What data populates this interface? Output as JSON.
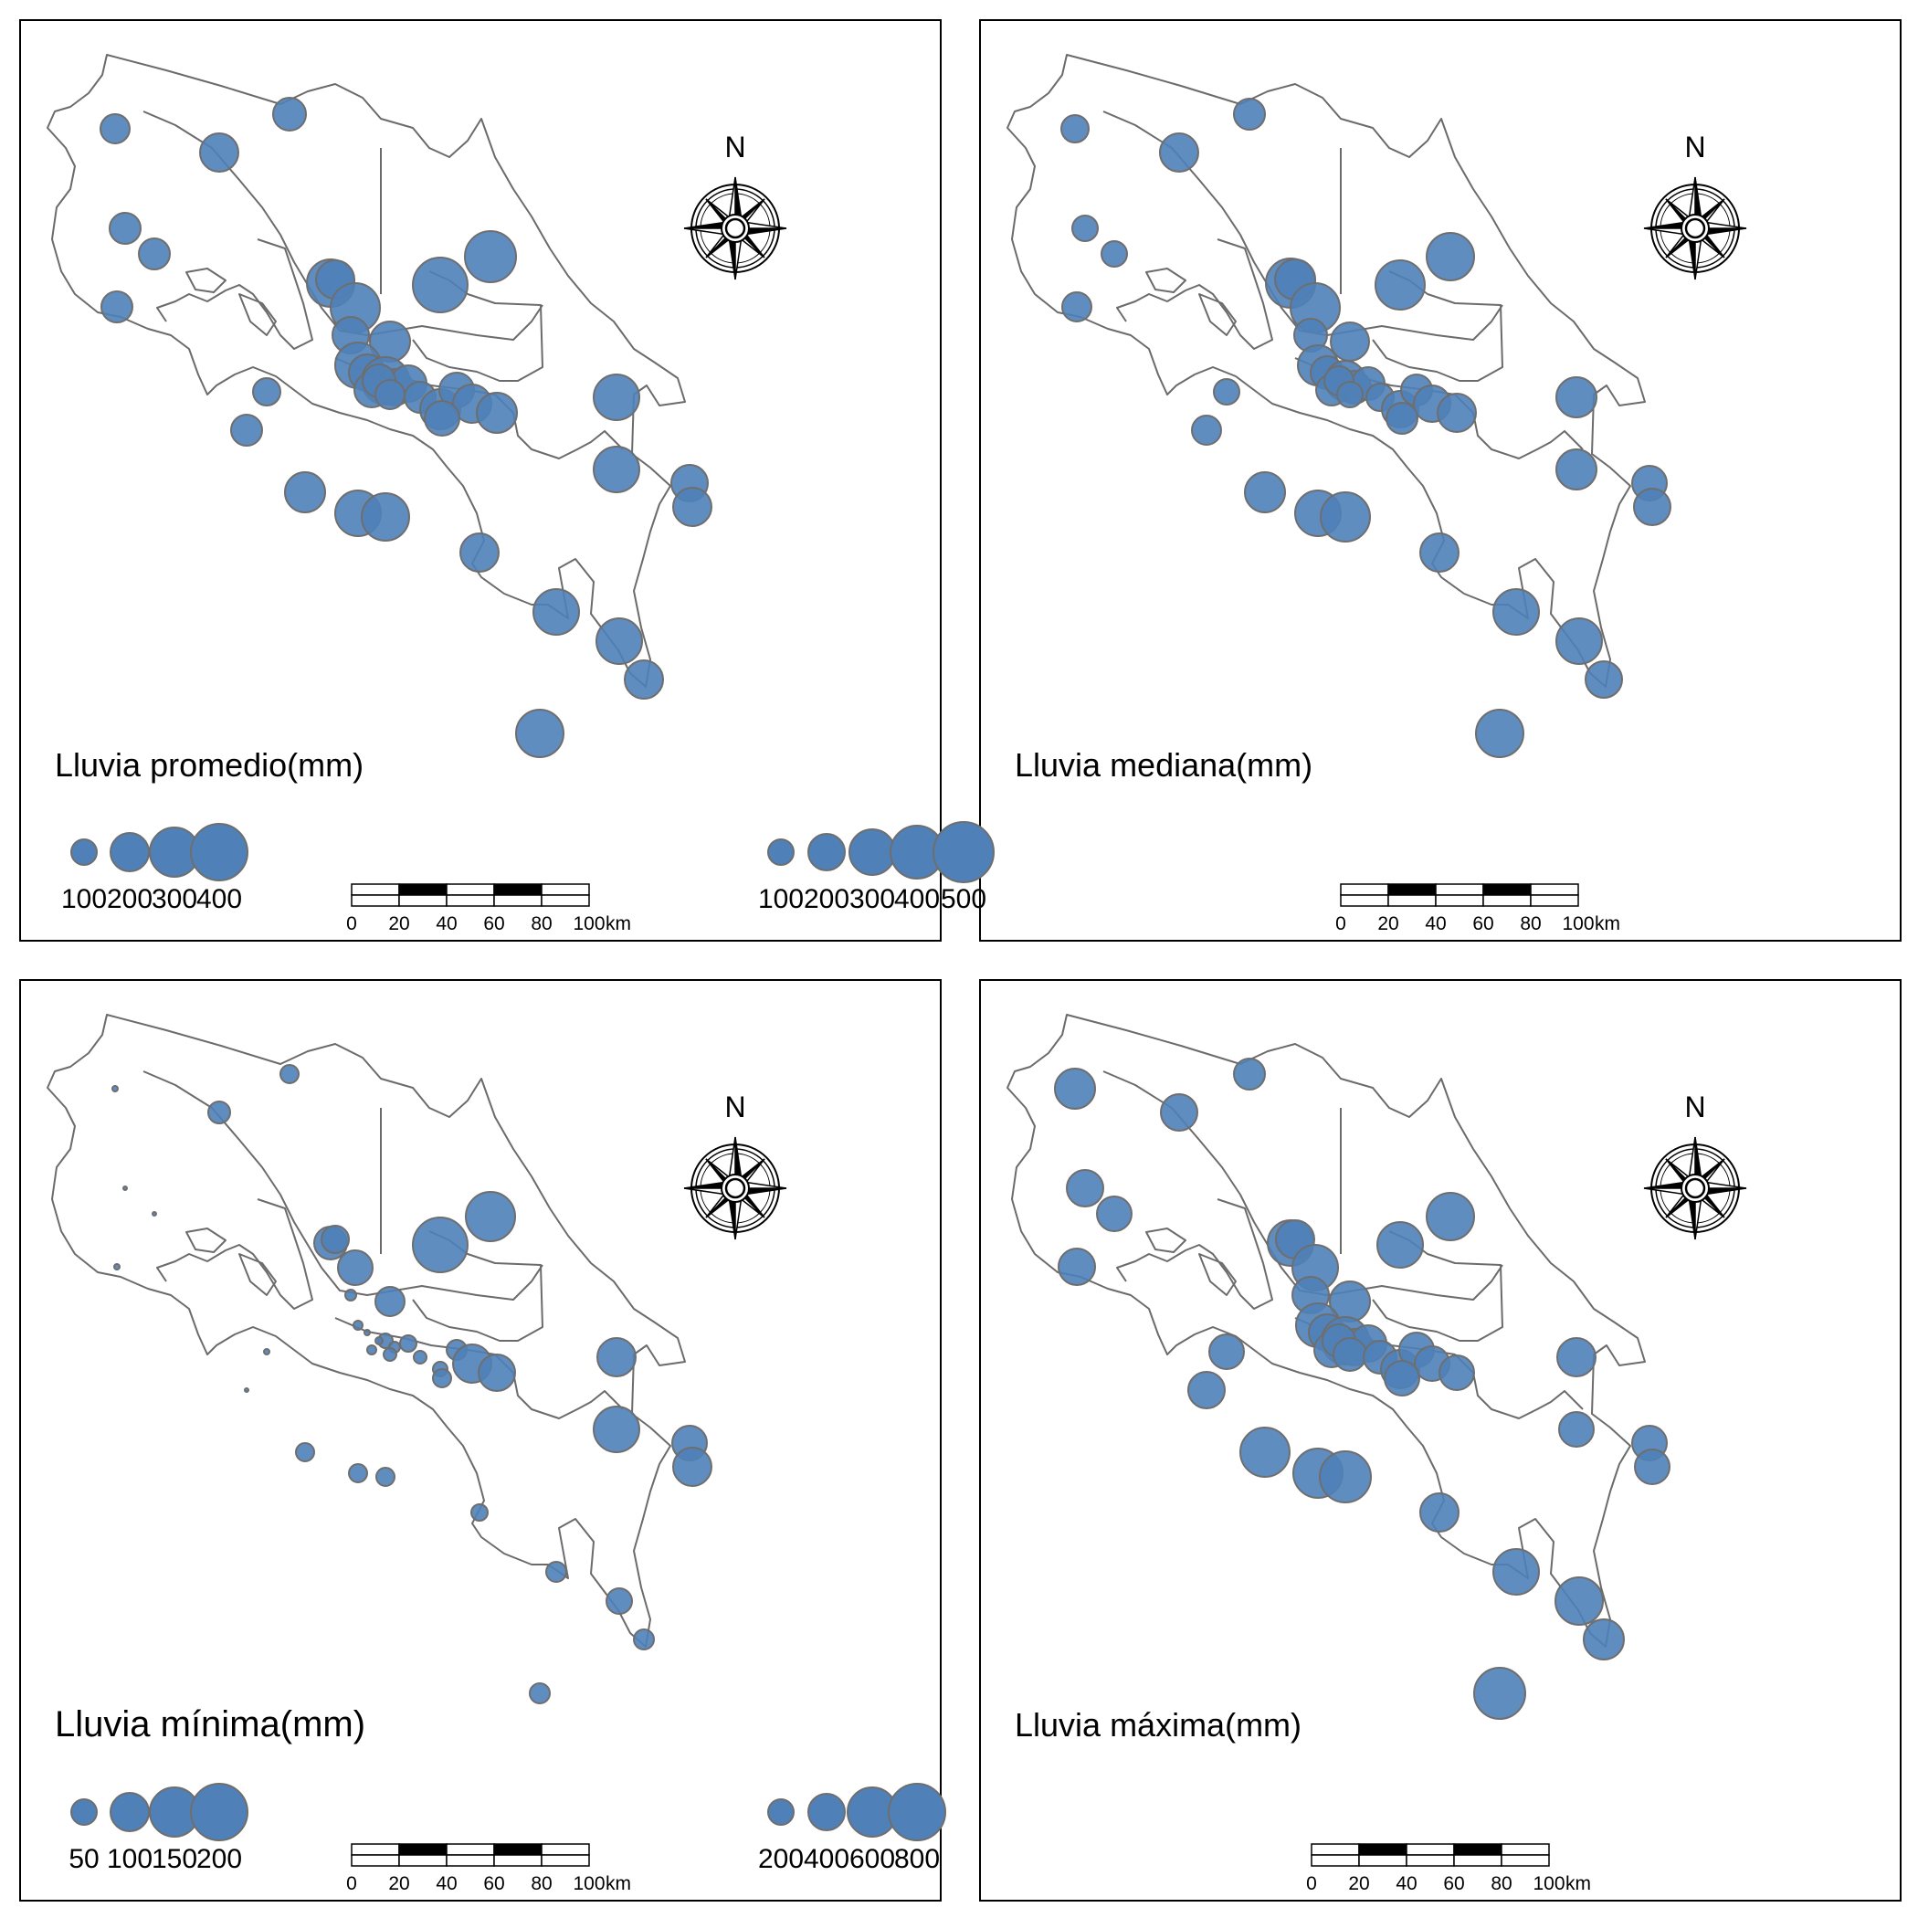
{
  "north_label": "N",
  "scale_bar": {
    "ticks": [
      "0",
      "20",
      "40",
      "60",
      "80",
      "100"
    ],
    "unit": "km"
  },
  "colors": {
    "bubble_fill": "#4f81b8",
    "bubble_stroke": "#6e6e6e",
    "boundary": "#6b6b6b",
    "frame": "#000000"
  },
  "panels": [
    {
      "id": "promedio",
      "legend_title": "Lluvia promedio(mm)",
      "legend_values": [
        "100",
        "200",
        "300",
        "400"
      ],
      "legend_numbers": [
        100,
        200,
        300,
        400
      ]
    },
    {
      "id": "mediana",
      "legend_title": "Lluvia mediana(mm)",
      "legend_values": [
        "100",
        "200",
        "300",
        "400",
        "500"
      ],
      "legend_numbers": [
        100,
        200,
        300,
        400,
        500
      ]
    },
    {
      "id": "minima",
      "legend_title": "Lluvia mínima(mm)",
      "legend_values": [
        "50",
        "100",
        "150",
        "200"
      ],
      "legend_numbers": [
        50,
        100,
        150,
        200
      ]
    },
    {
      "id": "maxima",
      "legend_title": "Lluvia máxima(mm)",
      "legend_values": [
        "200",
        "400",
        "600",
        "800"
      ],
      "legend_numbers": [
        200,
        400,
        600,
        800
      ]
    }
  ]
}
